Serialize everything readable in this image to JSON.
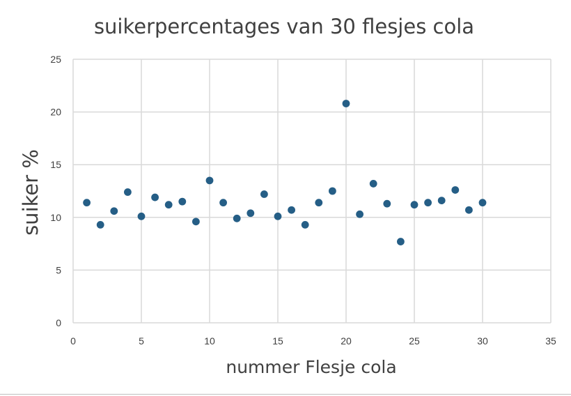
{
  "chart_data": {
    "type": "scatter",
    "title": "suikerpercentages van 30 flesjes cola",
    "xlabel": "nummer Flesje cola",
    "ylabel": "suiker %",
    "xlim": [
      0,
      35
    ],
    "ylim": [
      0,
      25
    ],
    "xticks": [
      0,
      5,
      10,
      15,
      20,
      25,
      30,
      35
    ],
    "yticks": [
      0,
      5,
      10,
      15,
      20,
      25
    ],
    "grid": true,
    "legend": "none",
    "marker_color": "#255e86",
    "x": [
      1,
      2,
      3,
      4,
      5,
      6,
      7,
      8,
      9,
      10,
      11,
      12,
      13,
      14,
      15,
      16,
      17,
      18,
      19,
      20,
      21,
      22,
      23,
      24,
      25,
      26,
      27,
      28,
      29,
      30
    ],
    "y": [
      11.4,
      9.3,
      10.6,
      12.4,
      10.1,
      11.9,
      11.2,
      11.5,
      9.6,
      13.5,
      11.4,
      9.9,
      10.4,
      12.2,
      10.1,
      10.7,
      9.3,
      11.4,
      12.5,
      20.8,
      10.3,
      13.2,
      11.3,
      7.7,
      11.2,
      11.4,
      11.6,
      12.6,
      10.7,
      11.4
    ]
  }
}
